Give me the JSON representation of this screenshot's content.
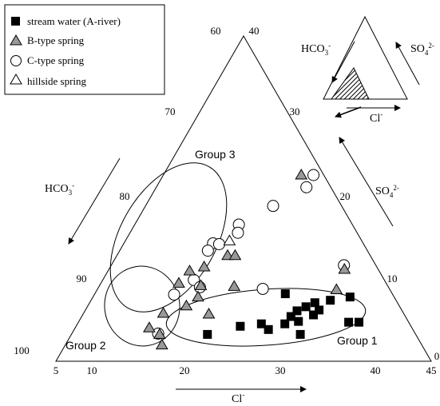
{
  "chart_data": {
    "type": "scatter",
    "diagram": "ternary-inset",
    "axes": {
      "bottom": {
        "name": "Cl",
        "sup": "-",
        "ticks": [
          "5",
          "10",
          "20",
          "30",
          "40",
          "45"
        ]
      },
      "left": {
        "name": "HCO",
        "sub": "3",
        "sup": "-",
        "ticks": [
          "60",
          "70",
          "80",
          "90",
          "100"
        ]
      },
      "right": {
        "name": "SO",
        "sub": "4",
        "sup": "2-",
        "ticks": [
          "40",
          "30",
          "20",
          "10",
          "0"
        ]
      }
    },
    "legend": {
      "placement": "top-left",
      "entries": [
        {
          "label": "stream  water  (A-river)",
          "marker": "filled-square"
        },
        {
          "label": "B-type  spring",
          "marker": "gray-triangle"
        },
        {
          "label": "C-type  spring",
          "marker": "open-circle"
        },
        {
          "label": "hillside  spring",
          "marker": "open-triangle"
        }
      ]
    },
    "groups": [
      {
        "label": "Group 1"
      },
      {
        "label": "Group 2"
      },
      {
        "label": "Group 3"
      }
    ],
    "inset": {
      "labels": {
        "left": {
          "text": "HCO",
          "sub": "3",
          "sup": "-"
        },
        "right": {
          "text": "SO",
          "sub": "4",
          "sup": "2-"
        },
        "bottom": {
          "text": "Cl",
          "sup": "-"
        }
      }
    },
    "series": [
      {
        "name": "stream  water  (A-river)",
        "marker": "filled-square",
        "points": [
          {
            "cl": 19.5,
            "so4": 3.3
          },
          {
            "cl": 22.5,
            "so4": 4.3
          },
          {
            "cl": 24.6,
            "so4": 4.6
          },
          {
            "cl": 25.7,
            "so4": 3.9
          },
          {
            "cl": 25.3,
            "so4": 8.3
          },
          {
            "cl": 27.1,
            "so4": 4.6
          },
          {
            "cl": 27.3,
            "so4": 5.5
          },
          {
            "cl": 27.6,
            "so4": 6.2
          },
          {
            "cl": 28.3,
            "so4": 6.7
          },
          {
            "cl": 28.4,
            "so4": 4.9
          },
          {
            "cl": 29.0,
            "so4": 7.2
          },
          {
            "cl": 29.6,
            "so4": 5.7
          },
          {
            "cl": 29.4,
            "so4": 3.3
          },
          {
            "cl": 29.9,
            "so4": 6.3
          },
          {
            "cl": 30.5,
            "so4": 7.5
          },
          {
            "cl": 32.4,
            "so4": 7.9
          },
          {
            "cl": 33.8,
            "so4": 4.8
          },
          {
            "cl": 34.9,
            "so4": 4.8
          }
        ]
      },
      {
        "name": "B-type  spring",
        "marker": "gray-triangle",
        "points": [
          {
            "cl": 19.7,
            "so4": 22.9
          },
          {
            "cl": 16.8,
            "so4": 13.0
          },
          {
            "cl": 17.6,
            "so4": 13.0
          },
          {
            "cl": 15.0,
            "so4": 11.6
          },
          {
            "cl": 13.7,
            "so4": 11.1
          },
          {
            "cl": 13.3,
            "so4": 9.6
          },
          {
            "cl": 19.4,
            "so4": 9.2
          },
          {
            "cl": 15.8,
            "so4": 9.3
          },
          {
            "cl": 16.2,
            "so4": 7.9
          },
          {
            "cl": 15.5,
            "so4": 6.8
          },
          {
            "cl": 18.4,
            "so4": 5.8
          },
          {
            "cl": 13.5,
            "so4": 5.9
          },
          {
            "cl": 12.9,
            "so4": 4.1
          },
          {
            "cl": 14.4,
            "so4": 3.3
          },
          {
            "cl": 15.3,
            "so4": 2.0
          },
          {
            "cl": 30.1,
            "so4": 11.3
          },
          {
            "cl": 30.5,
            "so4": 8.8
          }
        ]
      },
      {
        "name": "C-type  spring",
        "marker": "open-circle",
        "points": [
          {
            "cl": 21.0,
            "so4": 22.9
          },
          {
            "cl": 21.0,
            "so4": 21.4
          },
          {
            "cl": 18.6,
            "so4": 19.1
          },
          {
            "cl": 16.1,
            "so4": 16.8
          },
          {
            "cl": 16.5,
            "so4": 15.8
          },
          {
            "cl": 14.5,
            "so4": 14.5
          },
          {
            "cl": 15.2,
            "so4": 14.4
          },
          {
            "cl": 14.4,
            "so4": 13.6
          },
          {
            "cl": 14.7,
            "so4": 10.0
          },
          {
            "cl": 13.5,
            "so4": 8.2
          },
          {
            "cl": 15.8,
            "so4": 9.1
          },
          {
            "cl": 22.6,
            "so4": 8.9
          },
          {
            "cl": 29.8,
            "so4": 11.8
          },
          {
            "cl": 14.2,
            "so4": 3.4
          }
        ]
      },
      {
        "name": "hillside  spring",
        "marker": "open-triangle",
        "points": [
          {
            "cl": 16.1,
            "so4": 14.8
          }
        ]
      }
    ]
  }
}
